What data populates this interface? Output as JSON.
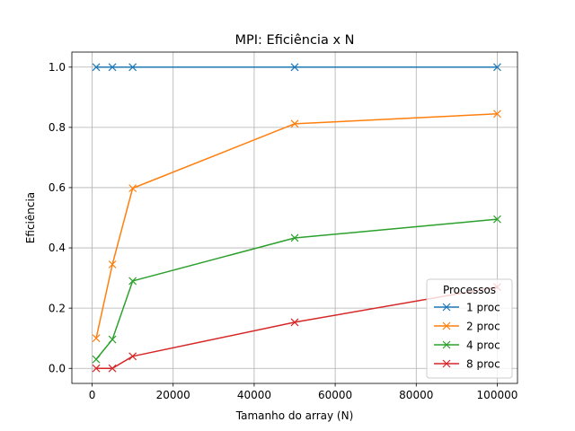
{
  "chart_data": {
    "type": "line",
    "title": "MPI: Eficiência x N",
    "xlabel": "Tamanho do array (N)",
    "ylabel": "Eficiência",
    "xlim": [
      -5000,
      105000
    ],
    "ylim": [
      -0.05,
      1.05
    ],
    "xticks": [
      0,
      20000,
      40000,
      60000,
      80000,
      100000
    ],
    "yticks": [
      0.0,
      0.2,
      0.4,
      0.6,
      0.8,
      1.0
    ],
    "xtick_labels": [
      "0",
      "20000",
      "40000",
      "60000",
      "80000",
      "100000"
    ],
    "ytick_labels": [
      "0.0",
      "0.2",
      "0.4",
      "0.6",
      "0.8",
      "1.0"
    ],
    "grid": true,
    "marker": "x",
    "legend": {
      "title": "Processos",
      "placement": "lower-right"
    },
    "x": [
      1000,
      5000,
      10000,
      50000,
      100000
    ],
    "series": [
      {
        "name": "1 proc",
        "color": "#1f77b4",
        "values": [
          1.0,
          1.0,
          1.0,
          1.0,
          1.0
        ]
      },
      {
        "name": "2 proc",
        "color": "#ff7f0e",
        "values": [
          0.1,
          0.345,
          0.598,
          0.812,
          0.845
        ]
      },
      {
        "name": "4 proc",
        "color": "#2ca02c",
        "values": [
          0.03,
          0.096,
          0.29,
          0.433,
          0.495
        ]
      },
      {
        "name": "8 proc",
        "color": "#d62728",
        "values": [
          0.0,
          0.0,
          0.04,
          0.153,
          0.27
        ]
      }
    ]
  }
}
